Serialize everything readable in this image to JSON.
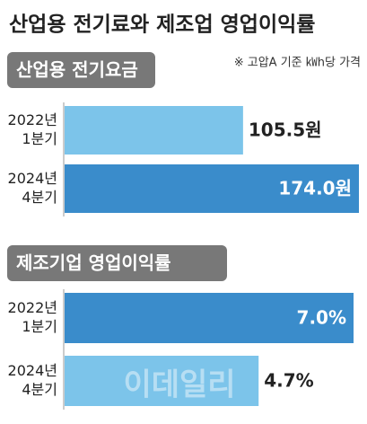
{
  "title": "산업용 전기료와 제조업 영업이익률",
  "note": "※ 고압A 기준 ㎾h당 가격",
  "watermark": "이데일리",
  "chart_data": [
    {
      "type": "bar",
      "title": "산업용 전기요금",
      "categories": [
        [
          "2022년",
          "1분기"
        ],
        [
          "2024년",
          "4분기"
        ]
      ],
      "values": [
        105.5,
        174.0
      ],
      "value_labels": [
        "105.5원",
        "174.0원"
      ],
      "colors": [
        "#7cc4ea",
        "#3a8ccb"
      ]
    },
    {
      "type": "bar",
      "title": "제조기업 영업이익률",
      "categories": [
        [
          "2022년",
          "1분기"
        ],
        [
          "2024년",
          "4분기"
        ]
      ],
      "values": [
        7.0,
        4.7
      ],
      "value_labels": [
        "7.0%",
        "4.7%"
      ],
      "colors": [
        "#3a8ccb",
        "#7cc4ea"
      ]
    }
  ]
}
